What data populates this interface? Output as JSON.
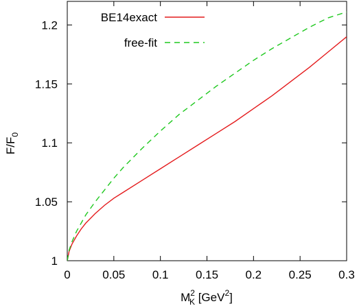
{
  "chart_data": {
    "type": "line",
    "xlabel": {
      "base": "M",
      "sub": "K",
      "sup": "2",
      "unit_open": " [GeV",
      "unit_sup": "2",
      "unit_close": "]"
    },
    "ylabel": {
      "base": "F/F",
      "sub": "0"
    },
    "xlim": [
      0,
      0.3
    ],
    "ylim": [
      1,
      1.22
    ],
    "x_ticks": [
      0,
      0.05,
      0.1,
      0.15,
      0.2,
      0.25,
      0.3
    ],
    "x_tick_labels": [
      "0",
      "0.05",
      "0.1",
      "0.15",
      "0.2",
      "0.25",
      "0.3"
    ],
    "y_ticks": [
      1,
      1.05,
      1.1,
      1.15,
      1.2
    ],
    "y_tick_labels": [
      "1",
      "1.05",
      "1.1",
      "1.15",
      "1.2"
    ],
    "grid": false,
    "legend_position": "top-left",
    "series": [
      {
        "name": "BE14exact",
        "color": "#e41a1c",
        "style": "solid",
        "x": [
          0,
          0.002,
          0.005,
          0.01,
          0.015,
          0.02,
          0.03,
          0.04,
          0.05,
          0.06,
          0.08,
          0.1,
          0.12,
          0.14,
          0.16,
          0.18,
          0.2,
          0.22,
          0.24,
          0.26,
          0.28,
          0.3
        ],
        "y": [
          1.0,
          1.008,
          1.014,
          1.021,
          1.027,
          1.032,
          1.04,
          1.047,
          1.053,
          1.058,
          1.068,
          1.078,
          1.088,
          1.098,
          1.108,
          1.118,
          1.129,
          1.14,
          1.152,
          1.164,
          1.177,
          1.19
        ]
      },
      {
        "name": "free-fit",
        "color": "#1ec81e",
        "style": "dashed",
        "x": [
          0,
          0.002,
          0.005,
          0.01,
          0.015,
          0.02,
          0.03,
          0.04,
          0.05,
          0.06,
          0.08,
          0.1,
          0.12,
          0.14,
          0.16,
          0.18,
          0.2,
          0.22,
          0.24,
          0.26,
          0.28,
          0.3
        ],
        "y": [
          1.0,
          1.009,
          1.016,
          1.025,
          1.032,
          1.039,
          1.05,
          1.06,
          1.07,
          1.079,
          1.095,
          1.11,
          1.124,
          1.136,
          1.148,
          1.159,
          1.17,
          1.18,
          1.189,
          1.198,
          1.206,
          1.211
        ]
      }
    ]
  }
}
